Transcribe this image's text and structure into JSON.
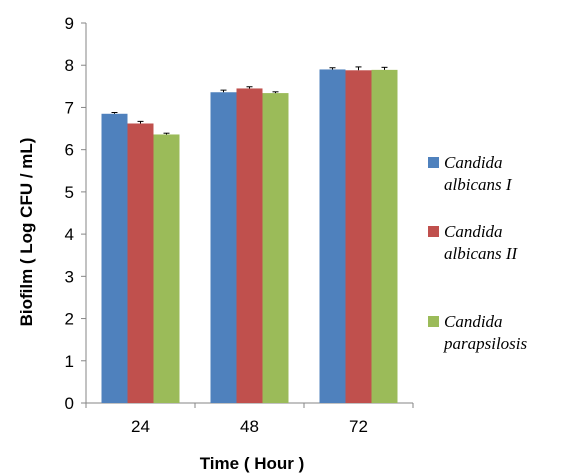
{
  "chart_data": {
    "type": "bar",
    "title": "",
    "xlabel": "Time ( Hour )",
    "ylabel": "Biofilm ( Log CFU / mL)",
    "ylim": [
      0,
      9
    ],
    "yticks": [
      "0",
      "1",
      "2",
      "3",
      "4",
      "5",
      "6",
      "7",
      "8",
      "9"
    ],
    "categories": [
      "24",
      "48",
      "72"
    ],
    "grid": false,
    "legend_position": "right",
    "series": [
      {
        "name": "Candida albicans I",
        "legend_lines": [
          "Candida",
          "albicans I"
        ],
        "color": "#4f81bd",
        "values": [
          6.85,
          7.36,
          7.9
        ],
        "errors": [
          0.03,
          0.05,
          0.04
        ]
      },
      {
        "name": "Candida albicans II",
        "legend_lines": [
          "Candida",
          "albicans II"
        ],
        "color": "#c0504d",
        "values": [
          6.62,
          7.45,
          7.88
        ],
        "errors": [
          0.05,
          0.04,
          0.08
        ]
      },
      {
        "name": "Candida parapsilosis",
        "legend_lines": [
          "Candida",
          "parapsilosis"
        ],
        "color": "#9bbb59",
        "values": [
          6.36,
          7.34,
          7.89
        ],
        "errors": [
          0.03,
          0.03,
          0.06
        ]
      }
    ]
  }
}
